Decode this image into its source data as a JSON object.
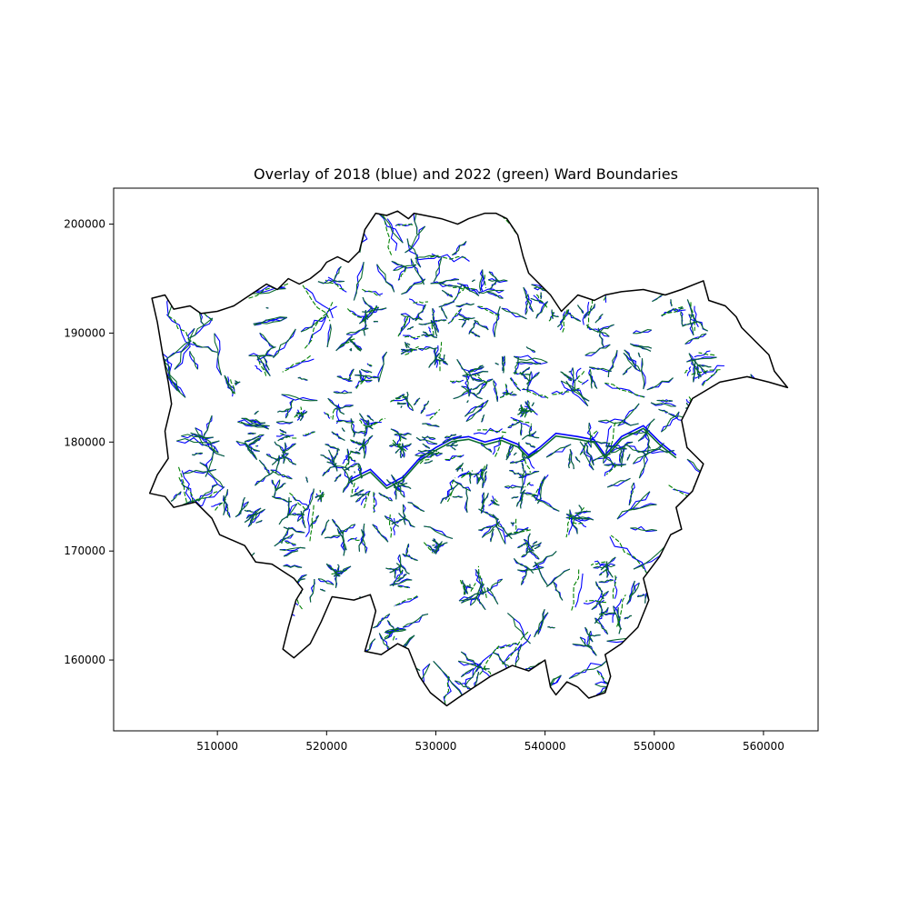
{
  "chart_data": {
    "type": "map",
    "title": "Overlay of 2018 (blue) and 2022 (green) Ward Boundaries",
    "xlabel": "",
    "ylabel": "",
    "xlim": [
      500500,
      565000
    ],
    "ylim": [
      153500,
      203300
    ],
    "x_ticks": [
      510000,
      520000,
      530000,
      540000,
      550000,
      560000
    ],
    "y_ticks": [
      160000,
      170000,
      180000,
      190000,
      200000
    ],
    "grid": false,
    "legend": "none",
    "series": [
      {
        "name": "2018",
        "color": "#0000ff",
        "line_style": "solid"
      },
      {
        "name": "2022",
        "color": "#008000",
        "line_style": "dashed"
      }
    ],
    "outline_color": "#000000",
    "outline": [
      [
        503800,
        175300
      ],
      [
        505200,
        175000
      ],
      [
        506000,
        174000
      ],
      [
        508000,
        174500
      ],
      [
        509500,
        173000
      ],
      [
        510200,
        171500
      ],
      [
        512500,
        170500
      ],
      [
        513500,
        169000
      ],
      [
        515000,
        168800
      ],
      [
        517000,
        167500
      ],
      [
        517800,
        166500
      ],
      [
        517200,
        165500
      ],
      [
        516500,
        163000
      ],
      [
        516000,
        161000
      ],
      [
        517000,
        160200
      ],
      [
        518500,
        161500
      ],
      [
        519500,
        163500
      ],
      [
        520500,
        165800
      ],
      [
        522500,
        165500
      ],
      [
        524000,
        166000
      ],
      [
        524500,
        164500
      ],
      [
        524000,
        162500
      ],
      [
        523500,
        160800
      ],
      [
        525000,
        160500
      ],
      [
        526500,
        161500
      ],
      [
        527500,
        161000
      ],
      [
        528500,
        158500
      ],
      [
        529500,
        157000
      ],
      [
        531000,
        155800
      ],
      [
        532000,
        156500
      ],
      [
        533500,
        157500
      ],
      [
        535000,
        158500
      ],
      [
        537000,
        159500
      ],
      [
        538500,
        159000
      ],
      [
        540000,
        160000
      ],
      [
        540500,
        157500
      ],
      [
        541000,
        156800
      ],
      [
        542000,
        158000
      ],
      [
        543000,
        157500
      ],
      [
        544000,
        156500
      ],
      [
        545500,
        157000
      ],
      [
        546000,
        158500
      ],
      [
        545500,
        160500
      ],
      [
        547000,
        161500
      ],
      [
        548500,
        163000
      ],
      [
        549500,
        165500
      ],
      [
        549000,
        167500
      ],
      [
        550500,
        169500
      ],
      [
        551500,
        171500
      ],
      [
        552500,
        172000
      ],
      [
        552000,
        174000
      ],
      [
        553500,
        175500
      ],
      [
        554500,
        178000
      ],
      [
        553000,
        179500
      ],
      [
        552500,
        182000
      ],
      [
        553500,
        184000
      ],
      [
        556000,
        185500
      ],
      [
        558500,
        186000
      ],
      [
        560500,
        185500
      ],
      [
        562200,
        185000
      ],
      [
        561000,
        186500
      ],
      [
        560500,
        188000
      ],
      [
        559000,
        189500
      ],
      [
        558000,
        190500
      ],
      [
        557500,
        191500
      ],
      [
        556500,
        192500
      ],
      [
        555000,
        193000
      ],
      [
        554500,
        194800
      ],
      [
        552500,
        194000
      ],
      [
        551000,
        193500
      ],
      [
        549000,
        194000
      ],
      [
        547000,
        193800
      ],
      [
        545500,
        193500
      ],
      [
        544500,
        193000
      ],
      [
        543000,
        193500
      ],
      [
        541500,
        192000
      ],
      [
        540500,
        193500
      ],
      [
        539500,
        194500
      ],
      [
        538500,
        195500
      ],
      [
        538000,
        197000
      ],
      [
        537500,
        199000
      ],
      [
        536500,
        200500
      ],
      [
        535500,
        201000
      ],
      [
        534500,
        201000
      ],
      [
        533000,
        200500
      ],
      [
        532000,
        200000
      ],
      [
        530500,
        200500
      ],
      [
        529000,
        200800
      ],
      [
        528000,
        201000
      ],
      [
        527500,
        200500
      ],
      [
        526500,
        201200
      ],
      [
        525500,
        200800
      ],
      [
        524500,
        201000
      ],
      [
        523500,
        199500
      ],
      [
        523000,
        197500
      ],
      [
        522000,
        196500
      ],
      [
        521000,
        197000
      ],
      [
        520000,
        196500
      ],
      [
        519500,
        195800
      ],
      [
        518500,
        195000
      ],
      [
        517500,
        194500
      ],
      [
        516500,
        195000
      ],
      [
        515500,
        194000
      ],
      [
        514500,
        194500
      ],
      [
        513000,
        193500
      ],
      [
        511500,
        192500
      ],
      [
        510000,
        192000
      ],
      [
        508500,
        191800
      ],
      [
        507500,
        192500
      ],
      [
        506000,
        192200
      ],
      [
        505200,
        193500
      ],
      [
        504000,
        193200
      ],
      [
        504500,
        191000
      ],
      [
        505000,
        188000
      ],
      [
        505500,
        185500
      ],
      [
        505800,
        183500
      ],
      [
        505200,
        181000
      ],
      [
        505500,
        178500
      ],
      [
        504500,
        177000
      ],
      [
        503800,
        175300
      ]
    ]
  }
}
